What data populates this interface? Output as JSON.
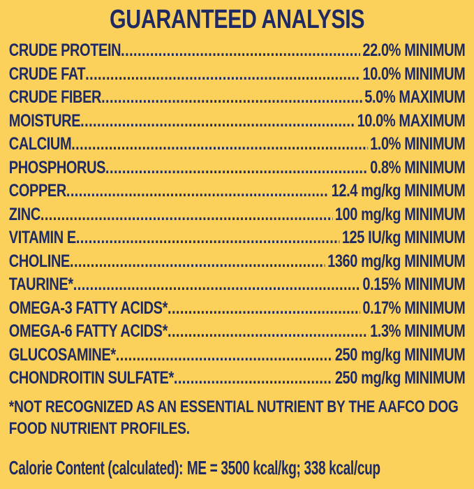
{
  "colors": {
    "background": "#fbd15c",
    "text": "#1f2a63"
  },
  "title": "GUARANTEED ANALYSIS",
  "nutrients": [
    {
      "label": "CRUDE PROTEIN",
      "value": "22.0% MINIMUM"
    },
    {
      "label": "CRUDE FAT",
      "value": "10.0% MINIMUM"
    },
    {
      "label": "CRUDE FIBER",
      "value": "5.0% MAXIMUM"
    },
    {
      "label": "MOISTURE",
      "value": "10.0% MAXIMUM"
    },
    {
      "label": "CALCIUM",
      "value": "1.0% MINIMUM"
    },
    {
      "label": "PHOSPHORUS",
      "value": "0.8% MINIMUM"
    },
    {
      "label": "COPPER",
      "value": "12.4 mg/kg MINIMUM"
    },
    {
      "label": "ZINC",
      "value": "100 mg/kg MINIMUM"
    },
    {
      "label": "VITAMIN E",
      "value": "125 IU/kg MINIMUM"
    },
    {
      "label": "CHOLINE",
      "value": "1360 mg/kg MINIMUM"
    },
    {
      "label": "TAURINE*",
      "value": "0.15% MINIMUM"
    },
    {
      "label": "OMEGA-3 FATTY ACIDS*",
      "value": "0.17% MINIMUM"
    },
    {
      "label": "OMEGA-6 FATTY ACIDS*",
      "value": "1.3% MINIMUM"
    },
    {
      "label": "GLUCOSAMINE*",
      "value": "250 mg/kg MINIMUM"
    },
    {
      "label": "CHONDROITIN SULFATE*",
      "value": "250 mg/kg MINIMUM"
    }
  ],
  "footnote": {
    "line1": "*NOT RECOGNIZED AS AN ESSENTIAL NUTRIENT BY THE AAFCO DOG",
    "line2": "FOOD NUTRIENT PROFILES."
  },
  "calorie": {
    "label": "Calorie Content (calculated):",
    "value": "ME = 3500 kcal/kg; 338 kcal/cup"
  }
}
